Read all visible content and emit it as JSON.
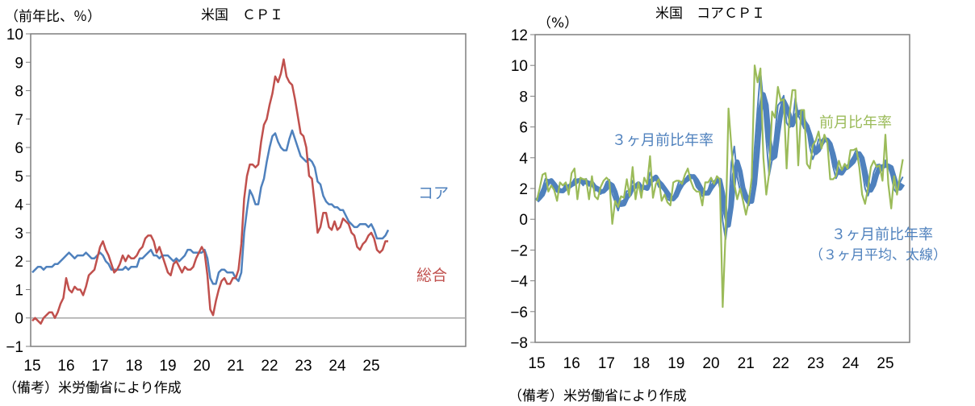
{
  "chart_data": [
    {
      "type": "line",
      "title": "米国　ＣＰＩ",
      "ylabel": "（前年比、％）",
      "xlabel": "",
      "note": "（備考）米労働省により作成",
      "ylim": [
        -1,
        10
      ],
      "yticks": [
        "10",
        "9",
        "8",
        "7",
        "6",
        "5",
        "4",
        "3",
        "2",
        "1",
        "0",
        "−1"
      ],
      "ytick_values": [
        10,
        9,
        8,
        7,
        6,
        5,
        4,
        3,
        2,
        1,
        0,
        -1
      ],
      "xticks": [
        "15",
        "16",
        "17",
        "18",
        "19",
        "20",
        "21",
        "22",
        "23",
        "24",
        "25"
      ],
      "x_start": "2015-01",
      "frequency": "monthly",
      "grid": false,
      "colors": {
        "core": "#4f81bd",
        "headline": "#c0504d",
        "zero": "#a6a6a6"
      },
      "series": [
        {
          "name": "コア",
          "key": "core",
          "values": [
            1.6,
            1.7,
            1.8,
            1.8,
            1.7,
            1.8,
            1.8,
            1.8,
            1.9,
            1.9,
            2.0,
            2.1,
            2.2,
            2.3,
            2.2,
            2.1,
            2.2,
            2.2,
            2.2,
            2.3,
            2.2,
            2.1,
            2.1,
            2.2,
            2.3,
            2.2,
            2.0,
            1.9,
            1.7,
            1.7,
            1.7,
            1.7,
            1.7,
            1.8,
            1.7,
            1.8,
            1.8,
            1.8,
            2.1,
            2.1,
            2.2,
            2.3,
            2.4,
            2.2,
            2.2,
            2.1,
            2.2,
            2.2,
            2.2,
            2.1,
            2.0,
            2.1,
            2.0,
            2.1,
            2.2,
            2.4,
            2.4,
            2.3,
            2.3,
            2.3,
            2.3,
            2.4,
            2.1,
            1.4,
            1.2,
            1.2,
            1.6,
            1.7,
            1.7,
            1.6,
            1.6,
            1.6,
            1.4,
            1.3,
            1.6,
            3.0,
            3.8,
            4.5,
            4.3,
            4.0,
            4.0,
            4.6,
            4.9,
            5.5,
            6.0,
            6.4,
            6.5,
            6.2,
            6.0,
            5.9,
            5.9,
            6.3,
            6.6,
            6.3,
            6.0,
            5.7,
            5.6,
            5.5,
            5.6,
            5.5,
            5.3,
            4.8,
            4.7,
            4.3,
            4.1,
            4.0,
            4.0,
            3.9,
            3.9,
            3.8,
            3.8,
            3.6,
            3.4,
            3.3,
            3.2,
            3.2,
            3.3,
            3.3,
            3.3,
            3.2,
            3.3,
            3.1,
            2.8,
            2.8,
            2.8,
            2.9,
            3.1
          ]
        },
        {
          "name": "総合",
          "key": "headline",
          "values": [
            -0.1,
            0.0,
            -0.1,
            -0.2,
            0.0,
            0.1,
            0.2,
            0.2,
            0.0,
            0.2,
            0.5,
            0.7,
            1.4,
            1.0,
            0.9,
            1.1,
            1.0,
            1.0,
            0.8,
            1.1,
            1.5,
            1.6,
            1.7,
            2.1,
            2.5,
            2.7,
            2.4,
            2.2,
            1.9,
            1.6,
            1.7,
            1.9,
            2.2,
            2.0,
            2.2,
            2.1,
            2.1,
            2.2,
            2.4,
            2.5,
            2.8,
            2.9,
            2.9,
            2.7,
            2.3,
            2.5,
            2.2,
            1.9,
            1.6,
            1.5,
            1.9,
            2.0,
            1.8,
            1.6,
            1.8,
            1.7,
            1.7,
            1.8,
            2.1,
            2.3,
            2.5,
            2.3,
            1.5,
            0.3,
            0.1,
            0.6,
            1.0,
            1.3,
            1.4,
            1.2,
            1.2,
            1.4,
            1.4,
            1.7,
            2.6,
            4.2,
            5.0,
            5.4,
            5.4,
            5.3,
            5.4,
            6.2,
            6.8,
            7.0,
            7.5,
            7.9,
            8.5,
            8.3,
            8.6,
            9.1,
            8.5,
            8.3,
            8.2,
            7.7,
            7.1,
            6.5,
            6.4,
            6.0,
            5.0,
            4.9,
            4.0,
            3.0,
            3.2,
            3.7,
            3.7,
            3.2,
            3.1,
            3.4,
            3.1,
            3.2,
            3.5,
            3.4,
            3.3,
            3.0,
            2.9,
            2.5,
            2.4,
            2.6,
            2.7,
            2.9,
            3.0,
            2.8,
            2.4,
            2.3,
            2.4,
            2.7,
            2.7
          ]
        }
      ]
    },
    {
      "type": "line",
      "title": "米国　コアＣＰＩ",
      "ylabel": "（%）",
      "xlabel": "",
      "note": "（備考）米労働省により作成",
      "ylim": [
        -8,
        12
      ],
      "yticks": [
        "12",
        "10",
        "8",
        "6",
        "4",
        "2",
        "0",
        "−2",
        "−4",
        "−6",
        "−8"
      ],
      "ytick_values": [
        12,
        10,
        8,
        6,
        4,
        2,
        0,
        -2,
        -4,
        -6,
        -8
      ],
      "xticks": [
        "15",
        "16",
        "17",
        "18",
        "19",
        "20",
        "21",
        "22",
        "23",
        "24",
        "25"
      ],
      "x_start": "2015-01",
      "frequency": "monthly",
      "grid": false,
      "colors": {
        "mom": "#9bbb59",
        "three_month": "#4f81bd",
        "three_month_avg": "#4f81bd"
      },
      "annotations": {
        "three_month_label": "３ヶ月前比年率",
        "mom_label": "前月比年率",
        "avg_label_1": "３ヶ月前比年率",
        "avg_label_2": "（３ヶ月平均、太線）"
      },
      "series": [
        {
          "name": "前月比年率",
          "key": "mom",
          "values": [
            1.2,
            2.0,
            2.9,
            3.0,
            1.8,
            2.2,
            1.9,
            1.2,
            2.4,
            2.2,
            2.4,
            1.6,
            3.0,
            3.3,
            1.3,
            2.7,
            2.6,
            2.6,
            1.3,
            2.8,
            1.5,
            1.3,
            2.1,
            2.5,
            2.7,
            2.5,
            -0.3,
            1.2,
            0.8,
            1.5,
            1.4,
            2.6,
            1.5,
            3.4,
            1.3,
            2.4,
            1.4,
            2.7,
            2.3,
            4.1,
            1.4,
            2.3,
            2.6,
            1.2,
            1.6,
            1.1,
            0.9,
            2.4,
            2.5,
            2.5,
            2.3,
            2.9,
            3.3,
            2.5,
            2.0,
            1.8,
            1.8,
            0.9,
            2.4,
            2.4,
            2.7,
            2.3,
            2.8,
            2.6,
            -5.7,
            -0.8,
            7.2,
            4.7,
            2.3,
            1.3,
            2.0,
            1.2,
            0.3,
            1.2,
            2.7,
            10.0,
            8.9,
            9.8,
            4.0,
            1.6,
            3.0,
            7.0,
            6.6,
            8.6,
            7.7,
            7.8,
            3.3,
            6.8,
            8.4,
            8.4,
            3.5,
            7.1,
            7.1,
            3.6,
            3.3,
            4.8,
            5.1,
            5.7,
            4.6,
            5.5,
            5.0,
            2.6,
            2.6,
            2.8,
            3.8,
            3.2,
            3.6,
            3.3,
            4.5,
            4.5,
            4.6,
            3.4,
            1.6,
            1.0,
            2.0,
            3.4,
            3.8,
            3.4,
            3.5,
            2.5,
            5.5,
            2.3,
            0.7,
            2.8,
            1.6,
            2.8,
            3.9
          ]
        }
      ]
    }
  ]
}
